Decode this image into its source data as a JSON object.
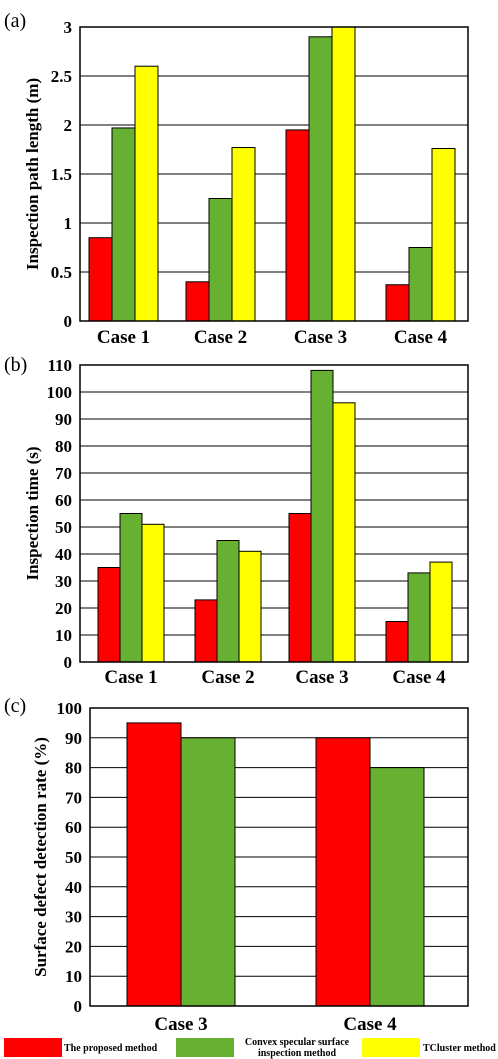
{
  "colors": {
    "proposed": "#ff0000",
    "convex": "#66b032",
    "tcluster": "#ffff00"
  },
  "legend": {
    "proposed": "The proposed method",
    "convex_line1": "Convex specular surface",
    "convex_line2": "inspection method",
    "tcluster": "TCluster method"
  },
  "chart_data": [
    {
      "type": "bar",
      "panel_label": "(a)",
      "ylabel": "Inspection path length (m)",
      "categories": [
        "Case 1",
        "Case 2",
        "Case 3",
        "Case 4"
      ],
      "ylim": [
        0,
        3
      ],
      "yticks": [
        0,
        0.5,
        1,
        1.5,
        2,
        2.5,
        3
      ],
      "ytick_labels": [
        "0",
        "0.5",
        "1",
        "1.5",
        "2",
        "2.5",
        "3"
      ],
      "series": [
        {
          "key": "proposed",
          "values": [
            0.85,
            0.4,
            1.95,
            0.37
          ]
        },
        {
          "key": "convex",
          "values": [
            1.97,
            1.25,
            2.9,
            0.75
          ]
        },
        {
          "key": "tcluster",
          "values": [
            2.6,
            1.77,
            3.0,
            1.76
          ]
        }
      ]
    },
    {
      "type": "bar",
      "panel_label": "(b)",
      "ylabel": "Inspection time (s)",
      "categories": [
        "Case 1",
        "Case 2",
        "Case 3",
        "Case 4"
      ],
      "ylim": [
        0,
        110
      ],
      "yticks": [
        0,
        10,
        20,
        30,
        40,
        50,
        60,
        70,
        80,
        90,
        100,
        110
      ],
      "ytick_labels": [
        "0",
        "10",
        "20",
        "30",
        "40",
        "50",
        "60",
        "70",
        "80",
        "90",
        "100",
        "110"
      ],
      "series": [
        {
          "key": "proposed",
          "values": [
            35,
            23,
            55,
            15
          ]
        },
        {
          "key": "convex",
          "values": [
            55,
            45,
            108,
            33
          ]
        },
        {
          "key": "tcluster",
          "values": [
            51,
            41,
            96,
            37
          ]
        }
      ]
    },
    {
      "type": "bar",
      "panel_label": "(c)",
      "ylabel": "Surface defect detection rate (%)",
      "categories": [
        "Case 3",
        "Case 4"
      ],
      "ylim": [
        0,
        100
      ],
      "yticks": [
        0,
        10,
        20,
        30,
        40,
        50,
        60,
        70,
        80,
        90,
        100
      ],
      "ytick_labels": [
        "0",
        "10",
        "20",
        "30",
        "40",
        "50",
        "60",
        "70",
        "80",
        "90",
        "100"
      ],
      "series": [
        {
          "key": "proposed",
          "values": [
            95,
            90
          ]
        },
        {
          "key": "convex",
          "values": [
            90,
            80
          ]
        }
      ]
    }
  ]
}
